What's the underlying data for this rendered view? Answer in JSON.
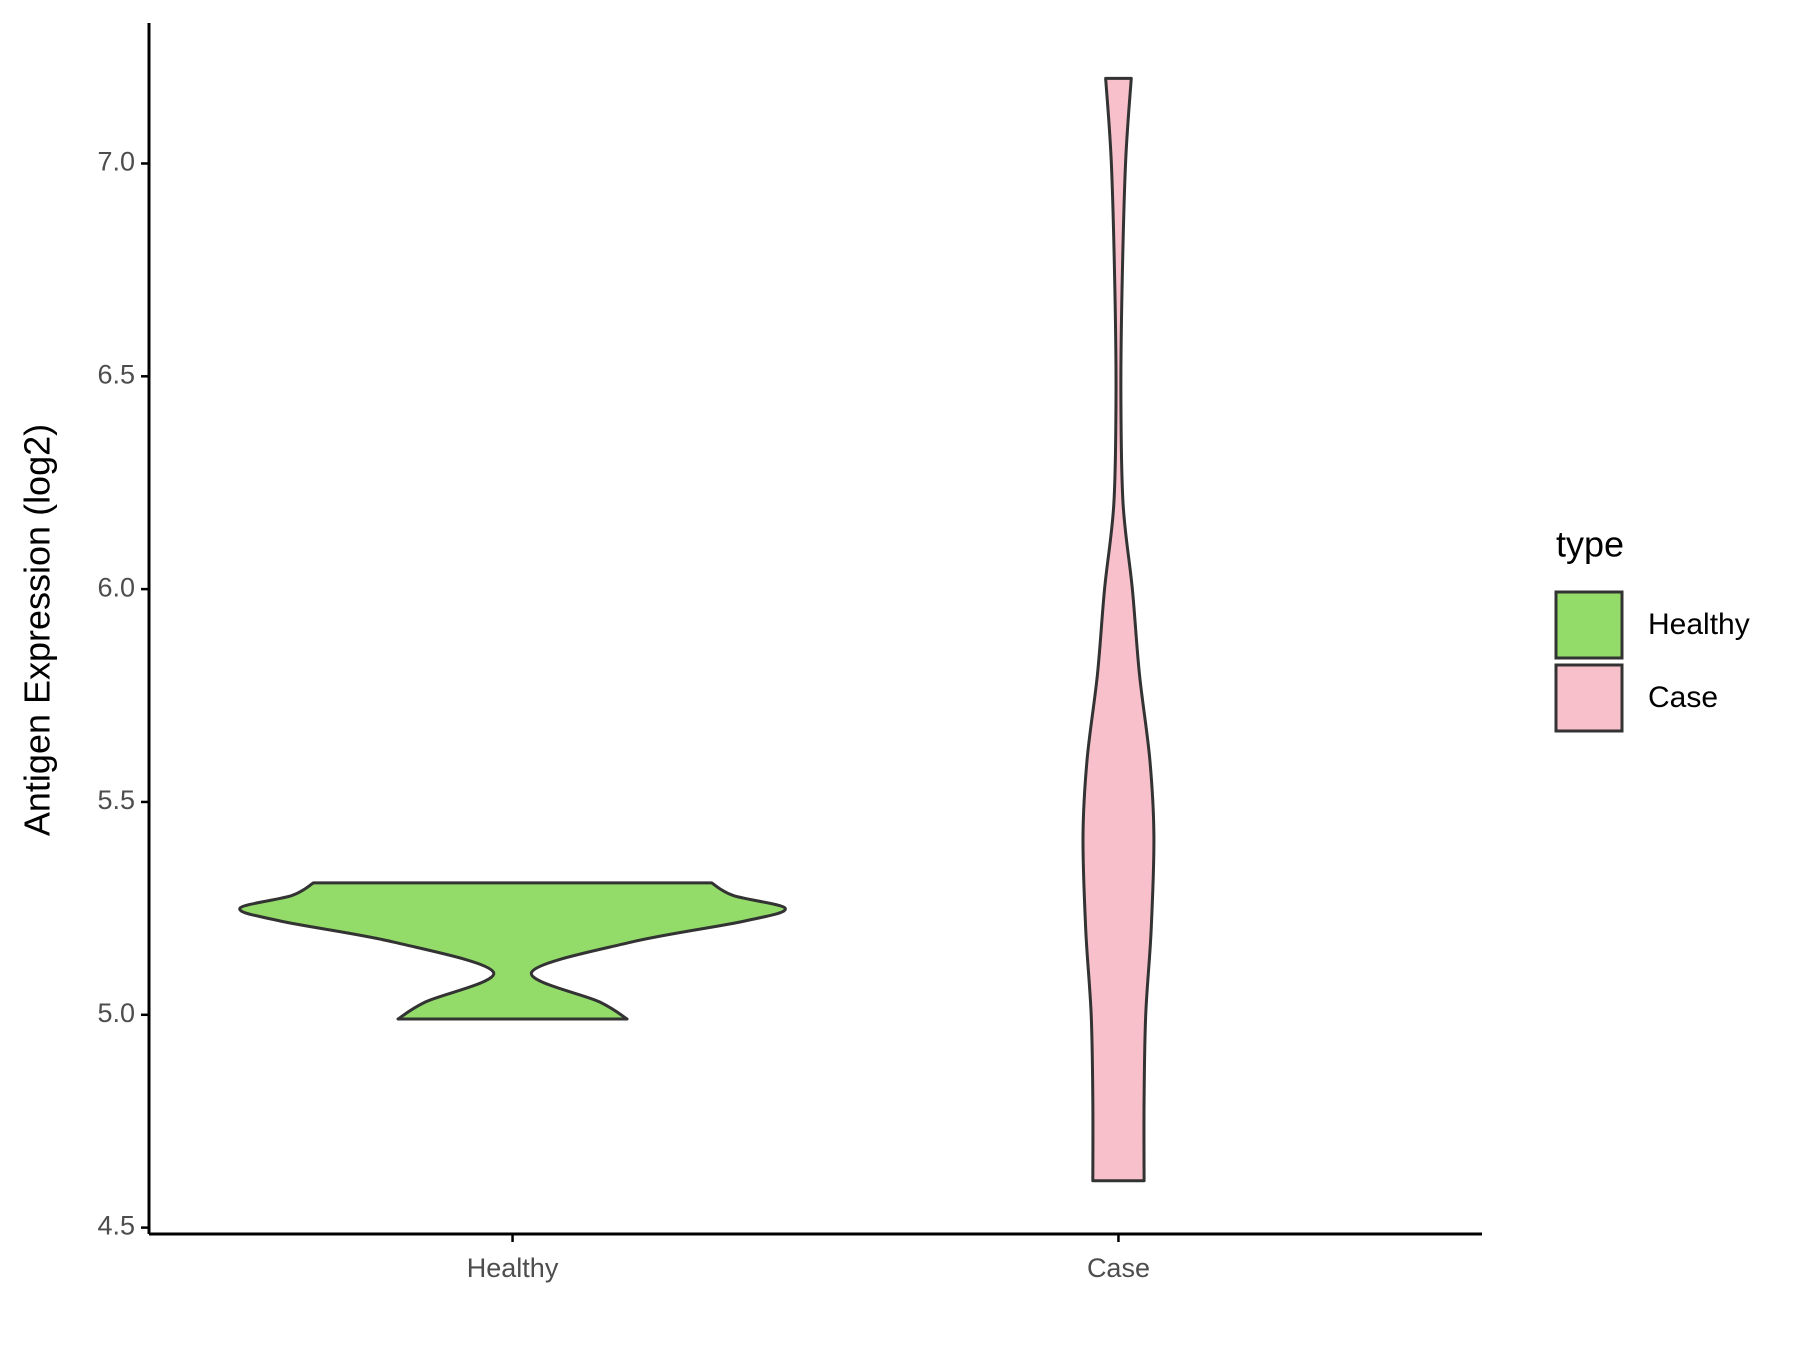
{
  "chart_data": {
    "type": "violin",
    "y_label": "Antigen Expression (log2)",
    "categories": [
      "Healthy",
      "Case"
    ],
    "series": [
      {
        "name": "Healthy",
        "color": "#93dc6a",
        "y": [
          4.99,
          5.03,
          5.1,
          5.17,
          5.22,
          5.25,
          5.28,
          5.31
        ],
        "width": [
          0.42,
          0.32,
          0.07,
          0.43,
          0.85,
          1.0,
          0.81,
          0.73
        ]
      },
      {
        "name": "Case",
        "color": "#f7c0cb",
        "y": [
          4.61,
          4.8,
          5.0,
          5.2,
          5.42,
          5.6,
          5.8,
          6.0,
          6.2,
          6.45,
          6.7,
          7.0,
          7.2
        ],
        "width": [
          0.094,
          0.094,
          0.1,
          0.12,
          0.13,
          0.115,
          0.077,
          0.051,
          0.017,
          0.009,
          0.013,
          0.026,
          0.047
        ]
      }
    ],
    "ylim": [
      4.485,
      7.33
    ],
    "yticks": [
      4.5,
      {
        "value": 5,
        "label": "5.0"
      },
      5.5,
      {
        "value": 6,
        "label": "6.0"
      },
      6.5,
      {
        "value": 7,
        "label": "7.0"
      }
    ],
    "legend_title": "type",
    "legend_position": "right"
  }
}
